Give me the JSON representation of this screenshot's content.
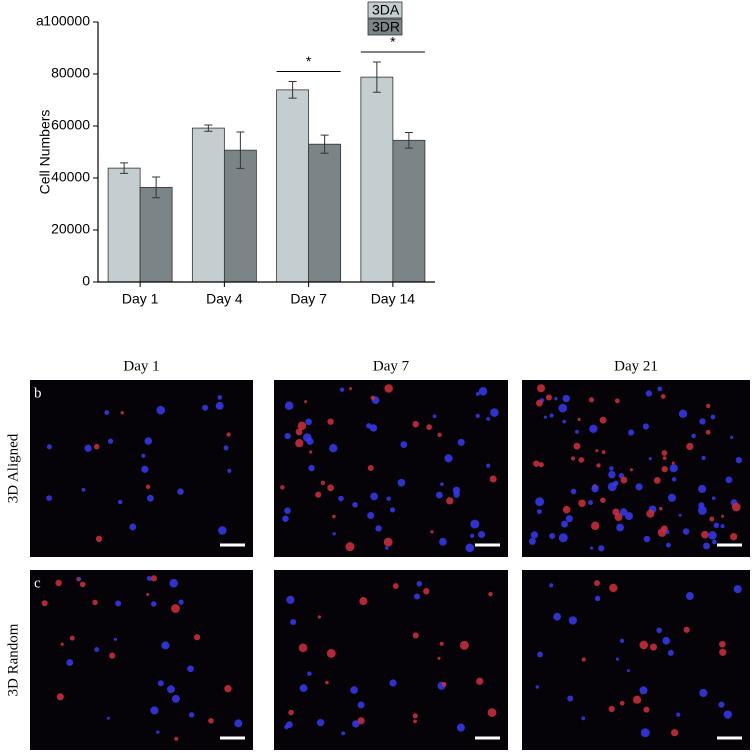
{
  "chart_data": {
    "type": "bar",
    "panel_label": "a",
    "y_label": "Cell Numbers",
    "categories": [
      "Day 1",
      "Day 4",
      "Day 7",
      "Day 14"
    ],
    "series": [
      {
        "name": "3DA",
        "color": "#c4cdcf",
        "values": [
          43800,
          59200,
          73900,
          78800
        ],
        "errors": [
          2000,
          1200,
          3200,
          5800
        ]
      },
      {
        "name": "3DR",
        "color": "#7b8588",
        "values": [
          36400,
          50700,
          53000,
          54500
        ],
        "errors": [
          4000,
          7000,
          3500,
          3000
        ]
      }
    ],
    "ylim": [
      0,
      100000
    ],
    "yticks": [
      0,
      20000,
      40000,
      60000,
      80000,
      100000
    ],
    "annotations": [
      {
        "text": "*",
        "category": "Day 7"
      },
      {
        "text": "*",
        "category": "Day 14"
      }
    ],
    "legend": "top-right"
  },
  "images": {
    "columns": [
      "Day 1",
      "Day 7",
      "Day 21"
    ],
    "rows": [
      {
        "panel_label": "b",
        "label": "3D Aligned"
      },
      {
        "panel_label": "c",
        "label": "3D Random"
      }
    ]
  }
}
